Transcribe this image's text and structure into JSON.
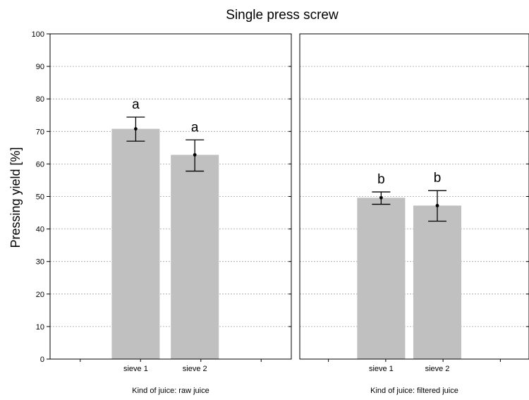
{
  "chart_data": {
    "type": "bar",
    "title": "Single press screw",
    "ylabel": "Pressing yield [%]",
    "ylim": [
      0,
      100
    ],
    "yticks": [
      0,
      10,
      20,
      30,
      40,
      50,
      60,
      70,
      80,
      90,
      100
    ],
    "grid": true,
    "colors": {
      "bar": "#c0c0c0",
      "grid": "#a0a0a0"
    },
    "panels": [
      {
        "label": "Kind of juice: raw juice",
        "categories": [
          "sieve 1",
          "sieve 2"
        ],
        "values": [
          70.8,
          62.8
        ],
        "error_low": [
          67.0,
          57.8
        ],
        "error_high": [
          74.4,
          67.4
        ],
        "group_letters": [
          "a",
          "a"
        ]
      },
      {
        "label": "Kind of juice: filtered juice",
        "categories": [
          "sieve 1",
          "sieve 2"
        ],
        "values": [
          49.6,
          47.2
        ],
        "error_low": [
          47.6,
          42.4
        ],
        "error_high": [
          51.4,
          51.8
        ],
        "group_letters": [
          "b",
          "b"
        ]
      }
    ]
  }
}
